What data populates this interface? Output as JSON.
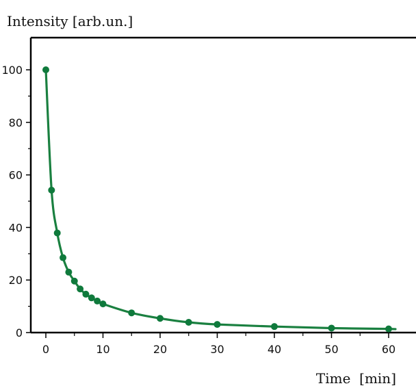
{
  "chart_data": {
    "type": "line",
    "title": "",
    "ylabel": "Intensity [arb.un.]",
    "xlabel": "Time  [min]",
    "xlim": [
      -2,
      65
    ],
    "ylim": [
      0,
      107
    ],
    "x_ticks": [
      0,
      10,
      20,
      30,
      40,
      50,
      60
    ],
    "y_ticks": [
      0,
      20,
      40,
      60,
      80,
      100
    ],
    "x_minor_ticks": [
      5,
      15,
      25,
      35,
      45,
      55
    ],
    "y_minor_ticks": [
      10,
      30,
      50,
      70,
      90
    ],
    "grid": false,
    "legend": "none",
    "line_color": "#1a8040",
    "marker_color": "#0f7a3c",
    "series": [
      {
        "x": [
          0,
          1,
          2,
          3,
          4,
          5,
          6,
          7,
          8,
          9,
          10,
          15,
          20,
          25,
          30,
          40,
          50,
          60
        ],
        "y": [
          100,
          54.2,
          37.9,
          28.5,
          23.0,
          19.6,
          16.6,
          14.6,
          13.2,
          12.0,
          10.9,
          7.5,
          5.4,
          3.9,
          3.1,
          2.3,
          1.7,
          1.4
        ]
      }
    ]
  }
}
